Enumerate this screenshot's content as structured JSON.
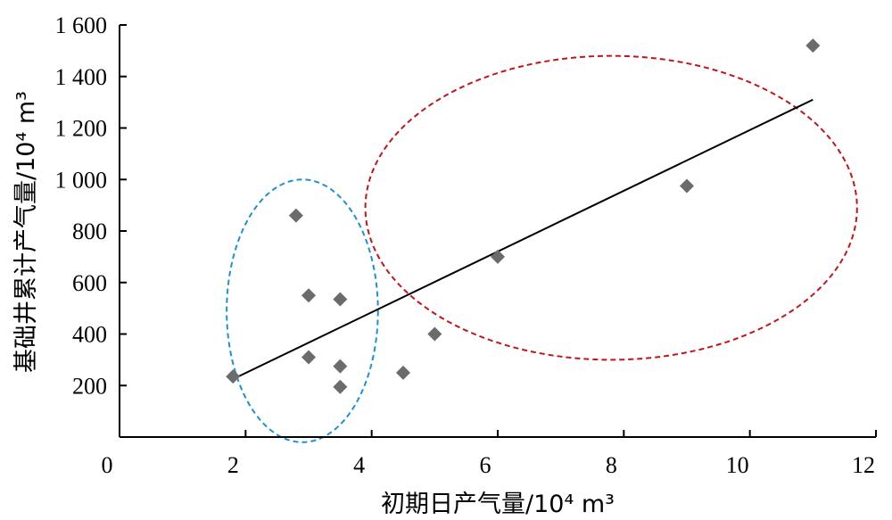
{
  "chart_data": {
    "type": "scatter",
    "title": "",
    "xlabel": "初期日产气量/10⁴ m³",
    "ylabel": "基础井累计产气量/10⁴ m³",
    "xlim": [
      0,
      12
    ],
    "ylim": [
      0,
      1600
    ],
    "x_ticks": [
      0,
      2,
      4,
      6,
      8,
      10,
      12
    ],
    "x_tick_labels": [
      "0",
      "2",
      "4",
      "6",
      "8",
      "10",
      "12"
    ],
    "y_ticks": [
      200,
      400,
      600,
      800,
      1000,
      1200,
      1400,
      1600
    ],
    "y_tick_labels": [
      "200",
      "400",
      "600",
      "800",
      "1 000",
      "1 200",
      "1 400",
      "1 600"
    ],
    "grid": false,
    "marker_color": "#6b6b6b",
    "points": [
      {
        "x": 1.8,
        "y": 235
      },
      {
        "x": 2.8,
        "y": 860
      },
      {
        "x": 3.0,
        "y": 550
      },
      {
        "x": 3.0,
        "y": 310
      },
      {
        "x": 3.5,
        "y": 535
      },
      {
        "x": 3.5,
        "y": 275
      },
      {
        "x": 3.5,
        "y": 195
      },
      {
        "x": 4.5,
        "y": 250
      },
      {
        "x": 5.0,
        "y": 400
      },
      {
        "x": 6.0,
        "y": 700
      },
      {
        "x": 9.0,
        "y": 975
      },
      {
        "x": 11.0,
        "y": 1520
      }
    ],
    "trendline": {
      "x": [
        1.8,
        11.0
      ],
      "y": [
        225,
        1310
      ],
      "color": "#000000"
    },
    "groups": [
      {
        "shape": "dashed-ellipse",
        "color": "#1e90d6",
        "center": [
          2.9,
          490
        ],
        "x_radius": 1.2,
        "y_radius": 510,
        "rotation_deg": 0
      },
      {
        "shape": "dashed-ellipse",
        "color": "#c4141b",
        "center": [
          7.8,
          890
        ],
        "x_radius": 3.9,
        "y_radius": 590,
        "rotation_deg": 0
      }
    ]
  }
}
